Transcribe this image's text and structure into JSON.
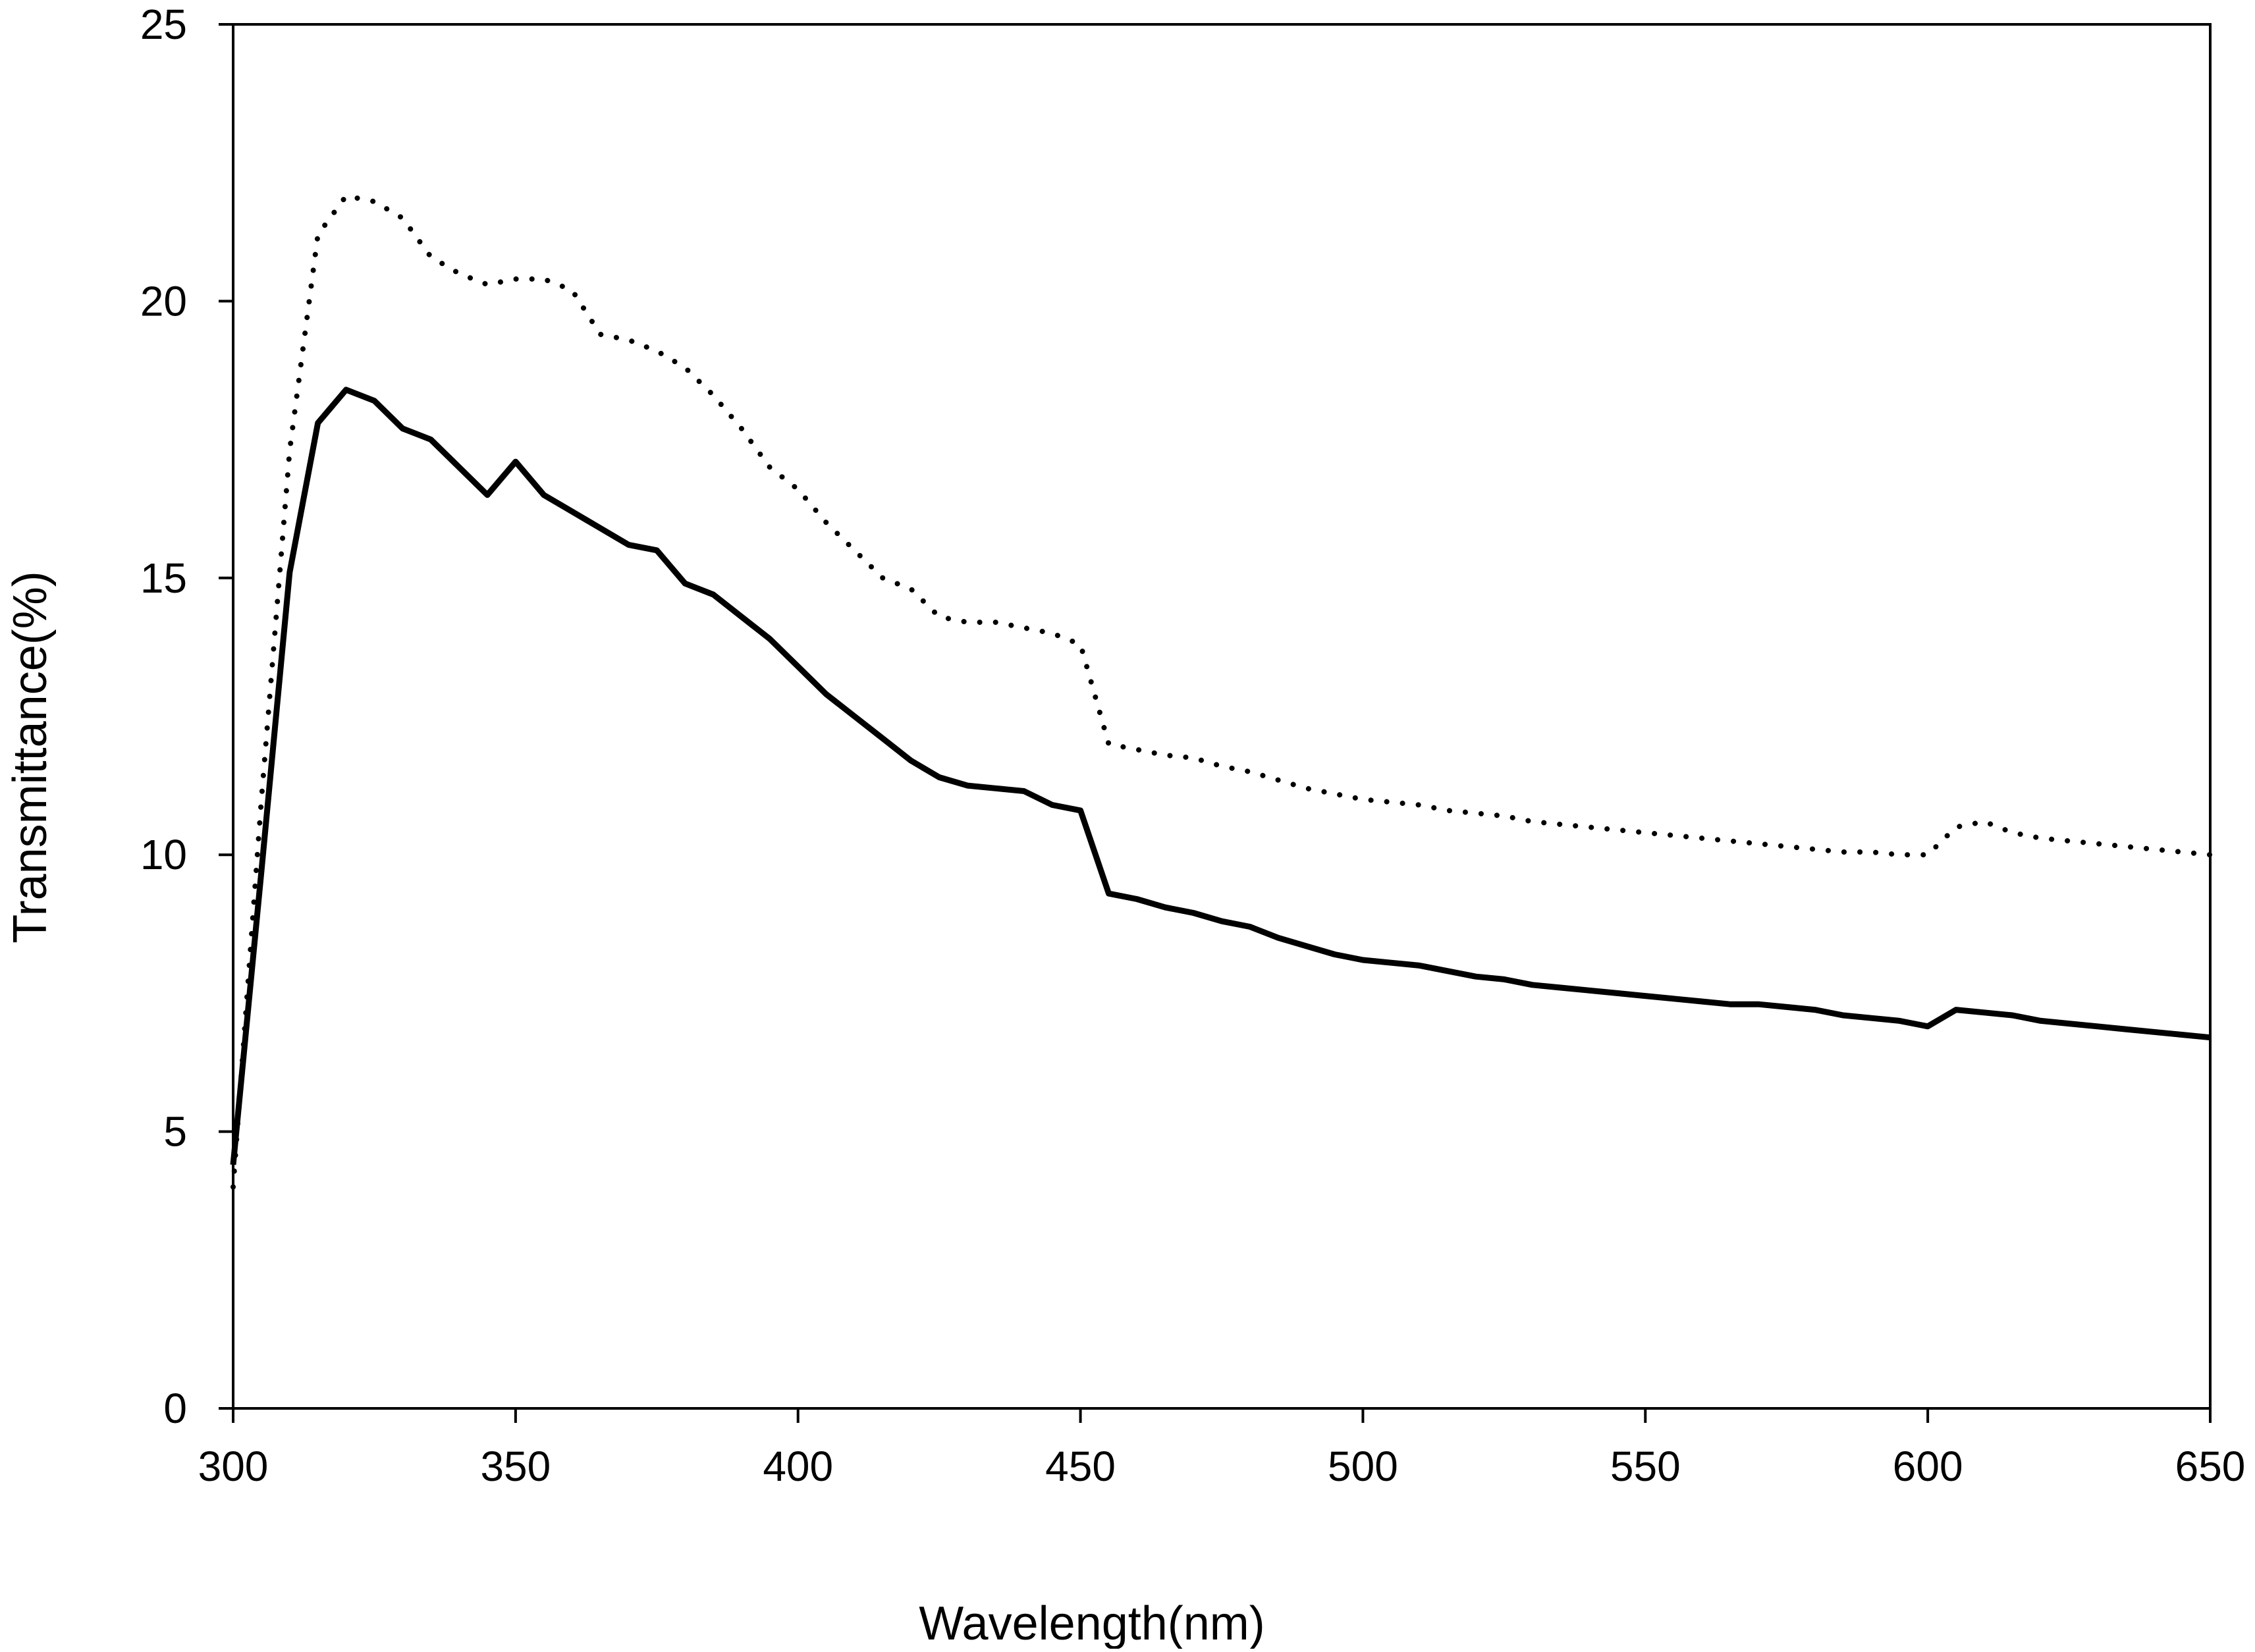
{
  "chart_data": {
    "type": "line",
    "title": "",
    "xlabel": "Wavelength(nm)",
    "ylabel": "Transmittance(%)",
    "xlim": [
      300,
      650
    ],
    "ylim": [
      0,
      25
    ],
    "xticks": [
      300,
      350,
      400,
      450,
      500,
      550,
      600,
      650
    ],
    "yticks": [
      0,
      5,
      10,
      15,
      20,
      25
    ],
    "grid": false,
    "legend": "none",
    "series": [
      {
        "style": "solid",
        "color": "#000000",
        "x": [
          300,
          305,
          310,
          315,
          320,
          325,
          330,
          335,
          340,
          345,
          350,
          355,
          360,
          365,
          370,
          375,
          380,
          385,
          390,
          395,
          400,
          405,
          410,
          415,
          420,
          425,
          430,
          435,
          440,
          445,
          450,
          455,
          460,
          465,
          470,
          475,
          480,
          485,
          490,
          495,
          500,
          505,
          510,
          515,
          520,
          525,
          530,
          535,
          540,
          545,
          550,
          555,
          560,
          565,
          570,
          575,
          580,
          585,
          590,
          595,
          600,
          605,
          610,
          615,
          620,
          625,
          630,
          635,
          640,
          645,
          650
        ],
        "y": [
          4.4,
          9.7,
          15.1,
          17.8,
          18.4,
          18.2,
          17.7,
          17.5,
          17.0,
          16.5,
          17.1,
          16.5,
          16.2,
          15.9,
          15.6,
          15.5,
          14.9,
          14.7,
          14.3,
          13.9,
          13.4,
          12.9,
          12.5,
          12.1,
          11.7,
          11.4,
          11.25,
          11.2,
          11.15,
          10.9,
          10.8,
          9.3,
          9.2,
          9.05,
          8.95,
          8.8,
          8.7,
          8.5,
          8.35,
          8.2,
          8.1,
          8.05,
          8.0,
          7.9,
          7.8,
          7.75,
          7.65,
          7.6,
          7.55,
          7.5,
          7.45,
          7.4,
          7.35,
          7.3,
          7.3,
          7.25,
          7.2,
          7.1,
          7.05,
          7.0,
          6.9,
          7.2,
          7.15,
          7.1,
          7.0,
          6.95,
          6.9,
          6.85,
          6.8,
          6.75,
          6.7
        ]
      },
      {
        "style": "dotted",
        "color": "#000000",
        "x": [
          300,
          305,
          310,
          315,
          320,
          325,
          330,
          335,
          340,
          345,
          350,
          355,
          360,
          365,
          370,
          375,
          380,
          385,
          390,
          395,
          400,
          405,
          410,
          415,
          420,
          425,
          430,
          435,
          440,
          445,
          450,
          455,
          460,
          465,
          470,
          475,
          480,
          485,
          490,
          495,
          500,
          505,
          510,
          515,
          520,
          525,
          530,
          535,
          540,
          545,
          550,
          555,
          560,
          565,
          570,
          575,
          580,
          585,
          590,
          595,
          600,
          605,
          610,
          615,
          620,
          625,
          630,
          635,
          640,
          645,
          650
        ],
        "y": [
          4.0,
          11.0,
          17.3,
          21.2,
          21.9,
          21.8,
          21.5,
          20.8,
          20.5,
          20.3,
          20.4,
          20.4,
          20.2,
          19.4,
          19.3,
          19.1,
          18.8,
          18.3,
          17.7,
          17.0,
          16.6,
          16.0,
          15.5,
          15.0,
          14.8,
          14.3,
          14.2,
          14.2,
          14.1,
          14.0,
          13.8,
          12.0,
          11.9,
          11.8,
          11.75,
          11.6,
          11.5,
          11.35,
          11.2,
          11.1,
          11.0,
          10.95,
          10.9,
          10.8,
          10.75,
          10.7,
          10.6,
          10.55,
          10.5,
          10.45,
          10.4,
          10.35,
          10.3,
          10.25,
          10.2,
          10.15,
          10.1,
          10.05,
          10.05,
          10.0,
          10.0,
          10.5,
          10.6,
          10.4,
          10.3,
          10.25,
          10.2,
          10.15,
          10.1,
          10.05,
          10.0
        ]
      }
    ]
  }
}
